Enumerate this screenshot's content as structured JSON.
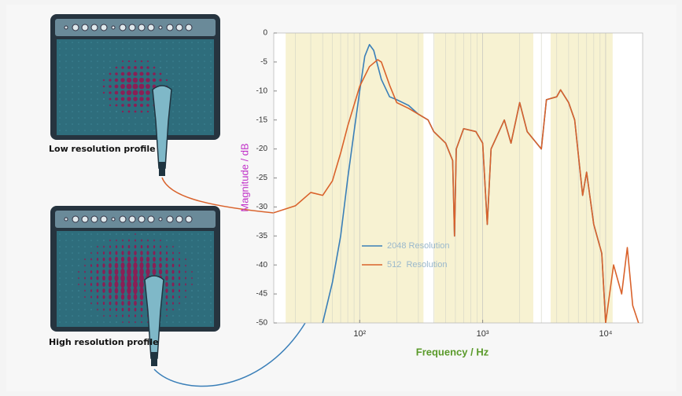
{
  "chart_data": {
    "type": "line",
    "ylabel": "Magnitude / dB",
    "xlabel": "Frequency / Hz",
    "log_x": true,
    "grid": true,
    "xlim": [
      20,
      20000
    ],
    "ylim": [
      -50,
      0
    ],
    "xticks": [
      {
        "value": 100,
        "label": "10²"
      },
      {
        "value": 1000,
        "label": "10³"
      },
      {
        "value": 10000,
        "label": "10⁴"
      }
    ],
    "xminor": [
      30,
      40,
      50,
      60,
      70,
      80,
      90,
      200,
      300,
      400,
      500,
      600,
      700,
      800,
      900,
      2000,
      3000,
      4000,
      5000,
      6000,
      7000,
      8000,
      9000
    ],
    "yticks": [
      -50,
      -45,
      -40,
      -35,
      -30,
      -25,
      -20,
      -15,
      -10,
      -5,
      0
    ],
    "shaded_ranges": [
      [
        25,
        330
      ],
      [
        405,
        2580
      ],
      [
        3570,
        11400
      ]
    ],
    "shade_color": "#f7f2d2",
    "legend": "lower center",
    "series": [
      {
        "name": "2048 Resolution",
        "color": "#3a7fb8",
        "x": [
          40,
          50,
          60,
          70,
          80,
          90,
          100,
          110,
          120,
          130,
          150,
          175,
          200,
          250,
          300,
          360,
          400,
          500,
          570,
          590,
          610,
          700,
          880,
          1000,
          1090,
          1170,
          1500,
          1700,
          2000,
          2300,
          3000,
          3300,
          4000,
          4300,
          5000,
          5600,
          6500,
          7000,
          8000,
          9300,
          10000
        ],
        "values": [
          -58,
          -50,
          -43,
          -35,
          -25,
          -17,
          -10,
          -4,
          -2,
          -3,
          -8,
          -11,
          -11.5,
          -12.5,
          -14,
          -15,
          -17,
          -19,
          -22,
          -35,
          -20,
          -16.5,
          -17,
          -19,
          -33,
          -20,
          -15,
          -19,
          -12,
          -17,
          -20,
          -11.5,
          -11,
          -9.8,
          -12,
          -15,
          -28,
          -24,
          -33,
          -38,
          -50
        ]
      },
      {
        "name": "512  Resolution",
        "color": "#d9622b",
        "x": [
          20,
          30,
          40,
          50,
          60,
          70,
          80,
          100,
          120,
          140,
          150,
          175,
          200,
          250,
          300,
          360,
          400,
          500,
          570,
          590,
          610,
          700,
          880,
          1000,
          1090,
          1170,
          1500,
          1700,
          2000,
          2300,
          3000,
          3300,
          4000,
          4300,
          5000,
          5600,
          6500,
          7000,
          8000,
          9300,
          10000,
          11600,
          13500,
          15000,
          16600,
          18500
        ],
        "values": [
          -31,
          -29.8,
          -27.5,
          -28,
          -25.5,
          -20.7,
          -16,
          -9.2,
          -5.8,
          -4.6,
          -5,
          -9,
          -12,
          -13,
          -14,
          -15,
          -17,
          -19,
          -22,
          -35,
          -20,
          -16.5,
          -17,
          -19,
          -33,
          -20,
          -15,
          -19,
          -12,
          -17,
          -20,
          -11.5,
          -11,
          -9.8,
          -12,
          -15,
          -28,
          -24,
          -33,
          -38,
          -50,
          -40,
          -45,
          -37,
          -47,
          -50
        ]
      }
    ]
  },
  "illustrations": {
    "top_label": "Low resolution profile",
    "bottom_label": "High resolution profile"
  }
}
